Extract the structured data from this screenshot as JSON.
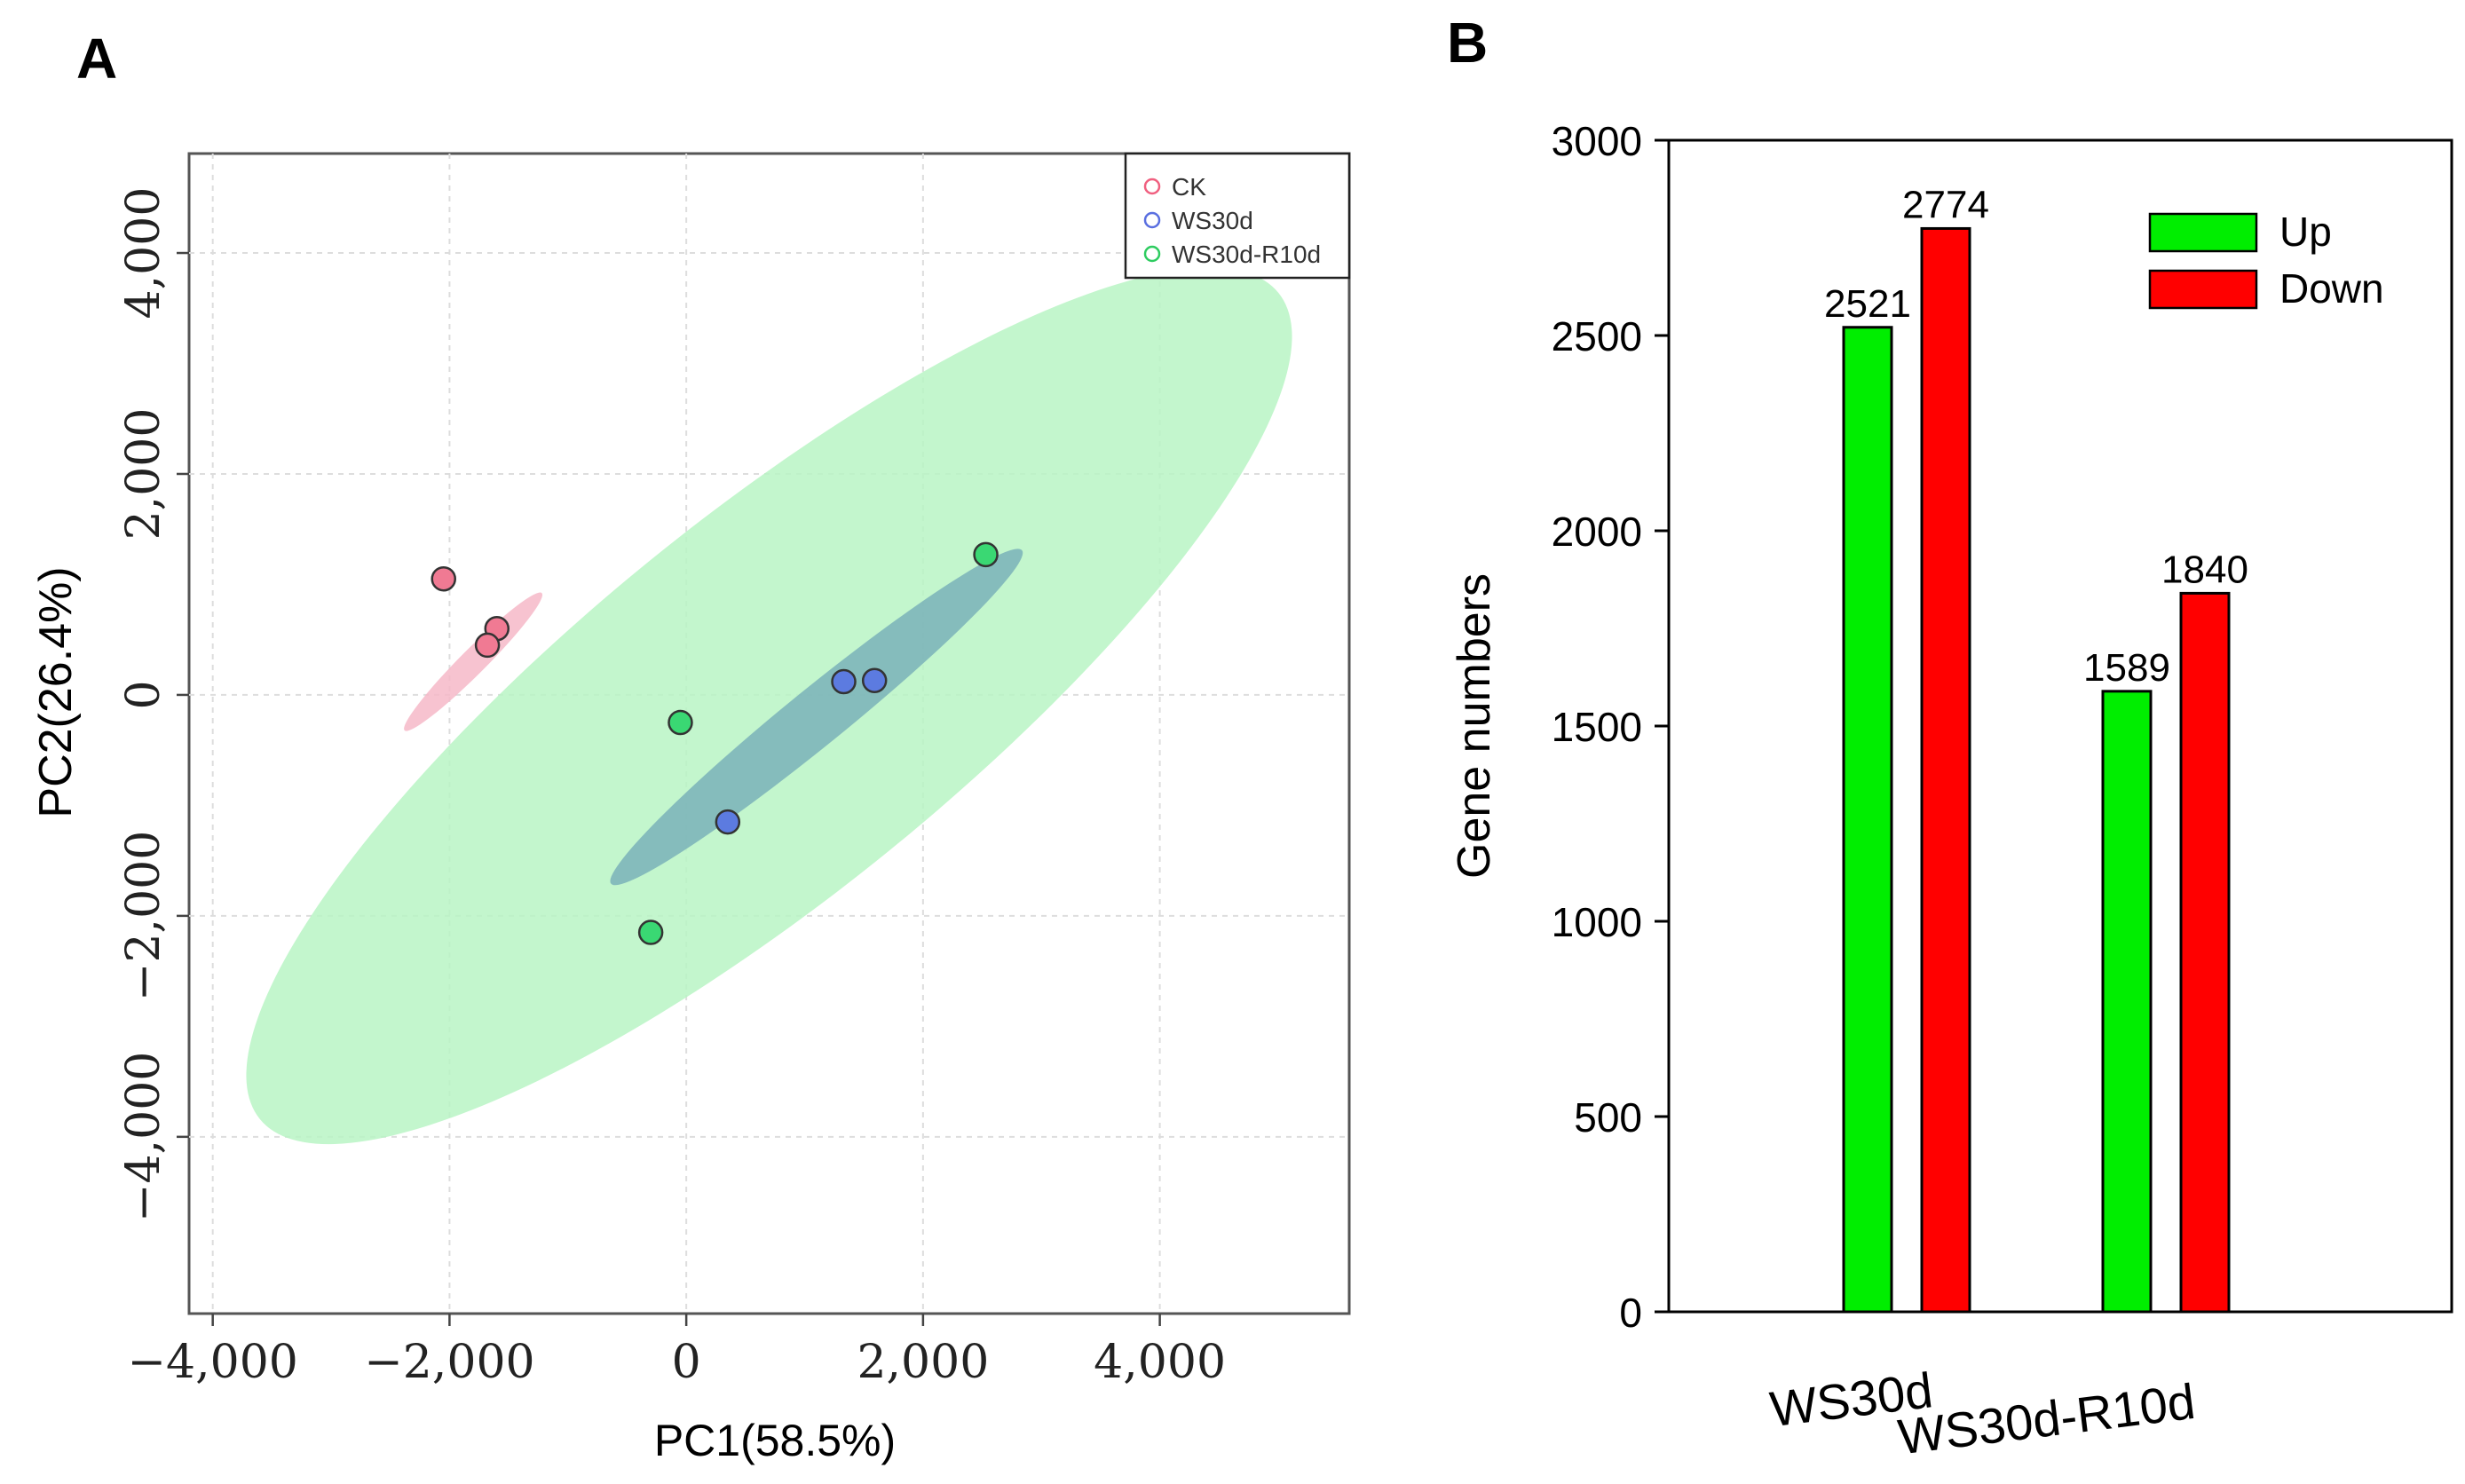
{
  "chart_data": [
    {
      "panel_label": "A",
      "type": "scatter",
      "xlabel": "PC1(58.5%)",
      "ylabel": "PC2(26.4%)",
      "xlim": [
        -4200,
        5600
      ],
      "ylim": [
        -5600,
        4900
      ],
      "grid": true,
      "x_ticks": [
        {
          "value": -4000,
          "label": "−4,000"
        },
        {
          "value": -2000,
          "label": "−2,000"
        },
        {
          "value": 0,
          "label": "0"
        },
        {
          "value": 2000,
          "label": "2,000"
        },
        {
          "value": 4000,
          "label": "4,000"
        }
      ],
      "y_ticks": [
        {
          "value": -4000,
          "label": "−4,000"
        },
        {
          "value": -2000,
          "label": "−2,000"
        },
        {
          "value": 0,
          "label": "0"
        },
        {
          "value": 2000,
          "label": "2,000"
        },
        {
          "value": 4000,
          "label": "4,000"
        }
      ],
      "legend_position": "top-right",
      "series": [
        {
          "name": "CK",
          "marker_color": "#F06080",
          "point_fill": "#F07A93",
          "ellipse_color": "#F6B8C8",
          "ellipse": {
            "cx": -1800,
            "cy": 300,
            "rx": 850,
            "ry": 110,
            "angle_deg": 47
          },
          "points": [
            {
              "x": -2050,
              "y": 1050
            },
            {
              "x": -1600,
              "y": 600
            },
            {
              "x": -1680,
              "y": 450
            }
          ]
        },
        {
          "name": "WS30d",
          "marker_color": "#5A6FE0",
          "point_fill": "#5C7BE0",
          "ellipse_color": "#7AB2B8",
          "ellipse": {
            "cx": 1100,
            "cy": -200,
            "rx": 2300,
            "ry": 250,
            "angle_deg": 41
          },
          "points": [
            {
              "x": 1330,
              "y": 120
            },
            {
              "x": 1590,
              "y": 130
            },
            {
              "x": 350,
              "y": -1150
            }
          ]
        },
        {
          "name": "WS30d-R10d",
          "marker_color": "#2ECC60",
          "point_fill": "#3AD873",
          "ellipse_color": "#B8F5C4",
          "ellipse": {
            "cx": 700,
            "cy": -100,
            "rx": 5700,
            "ry": 1650,
            "angle_deg": 41
          },
          "points": [
            {
              "x": 2530,
              "y": 1270
            },
            {
              "x": -50,
              "y": -250
            },
            {
              "x": -300,
              "y": -2150
            }
          ]
        }
      ]
    },
    {
      "panel_label": "B",
      "type": "bar",
      "categories": [
        "WS30d",
        "WS30d-R10d"
      ],
      "series": [
        {
          "name": "Up",
          "color": "#00EE00",
          "values": [
            2521,
            1589
          ]
        },
        {
          "name": "Down",
          "color": "#FF0000",
          "values": [
            2774,
            1840
          ]
        }
      ],
      "xlabel": "",
      "ylabel": "Gene numbers",
      "ylim": [
        0,
        3000
      ],
      "y_ticks": [
        0,
        500,
        1000,
        1500,
        2000,
        2500,
        3000
      ],
      "legend_position": "top-right",
      "data_labels": true,
      "grid": false
    }
  ]
}
